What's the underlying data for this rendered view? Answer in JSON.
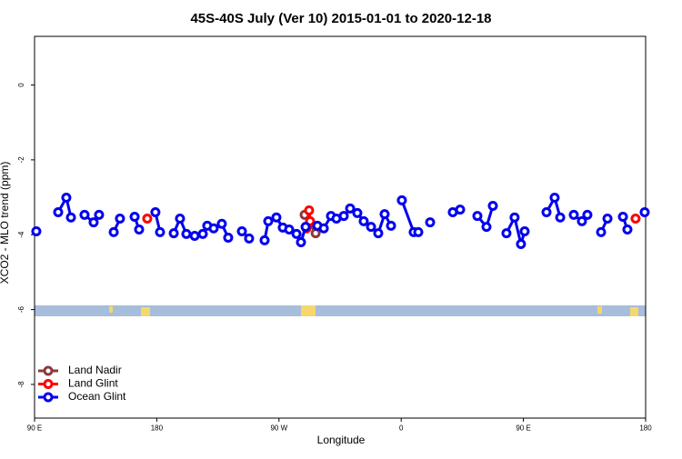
{
  "chart_data": {
    "type": "line",
    "title": "45S-40S July (Ver 10)   2015-01-01 to 2020-12-18",
    "x_label": "Longitude",
    "y_label": "XCO2 - MLO trend (ppm)",
    "xlim": [
      90,
      540
    ],
    "xticks": [
      {
        "value": 90,
        "label": "90 E"
      },
      {
        "value": 180,
        "label": "180"
      },
      {
        "value": 270,
        "label": "90 W"
      },
      {
        "value": 360,
        "label": "0"
      },
      {
        "value": 450,
        "label": "90 E"
      },
      {
        "value": 540,
        "label": "180"
      }
    ],
    "ylim": [
      -8.9,
      1.3
    ],
    "yticks": [
      0,
      -2,
      -4,
      -6,
      -8
    ],
    "legend": "bottom-left",
    "series": [
      {
        "name": "Land Nadir",
        "color": "#8b3a3a",
        "x": [
          288.9,
          297
        ],
        "values": [
          -3.47,
          -3.96
        ]
      },
      {
        "name": "Land Glint",
        "color": "#ff0000",
        "x": [
          173,
          null,
          292.2,
          292.9,
          290.2,
          null,
          532.6
        ],
        "values": [
          -3.57,
          null,
          -3.35,
          -3.64,
          -3.83,
          null,
          -3.57
        ]
      },
      {
        "name": "Ocean Glint",
        "color": "#0000ee",
        "x": [
          91.3,
          null,
          107.4,
          113.4,
          116.8,
          null,
          126.8,
          133.5,
          137.5,
          null,
          148.3,
          152.9,
          null,
          163.7,
          167,
          null,
          179,
          182.4,
          null,
          192.5,
          197.1,
          201.8,
          207.9,
          213.9,
          217.2,
          221.9,
          227.9,
          232.6,
          null,
          242.7,
          248,
          null,
          259.4,
          262.1,
          268.1,
          272.8,
          277.5,
          282.9,
          286.2,
          289.6,
          null,
          298.3,
          303,
          308.3,
          312.3,
          317.7,
          322.4,
          327.7,
          332.4,
          337.8,
          343.1,
          347.8,
          352.5,
          null,
          360.5,
          369.2,
          372.6,
          null,
          381.3,
          null,
          398,
          403.4,
          null,
          416.1,
          422.8,
          427.5,
          null,
          437.5,
          443.5,
          448.2,
          450.9,
          null,
          467,
          473,
          477.1,
          null,
          487.1,
          493.1,
          497.1,
          null,
          507.2,
          511.9,
          null,
          523.3,
          526.6,
          null,
          539.3
        ],
        "values": [
          -3.91,
          null,
          -3.4,
          -3.01,
          -3.54,
          null,
          -3.47,
          -3.67,
          -3.47,
          null,
          -3.93,
          -3.57,
          null,
          -3.52,
          -3.86,
          null,
          -3.4,
          -3.93,
          null,
          -3.96,
          -3.57,
          -3.98,
          -4.03,
          -3.98,
          -3.76,
          -3.83,
          -3.71,
          -4.08,
          null,
          -3.91,
          -4.1,
          null,
          -4.15,
          -3.64,
          -3.54,
          -3.81,
          -3.86,
          -3.98,
          -4.2,
          -3.79,
          null,
          -3.76,
          -3.83,
          -3.5,
          -3.57,
          -3.5,
          -3.3,
          -3.42,
          -3.64,
          -3.79,
          -3.96,
          -3.45,
          -3.76,
          null,
          -3.08,
          -3.93,
          -3.93,
          null,
          -3.67,
          null,
          -3.4,
          -3.33,
          null,
          -3.5,
          -3.79,
          -3.23,
          null,
          -3.96,
          -3.54,
          -4.25,
          -3.91,
          null,
          -3.4,
          -3.01,
          -3.54,
          null,
          -3.47,
          -3.64,
          -3.47,
          null,
          -3.93,
          -3.57,
          null,
          -3.52,
          -3.86,
          null,
          -3.4
        ]
      }
    ]
  }
}
